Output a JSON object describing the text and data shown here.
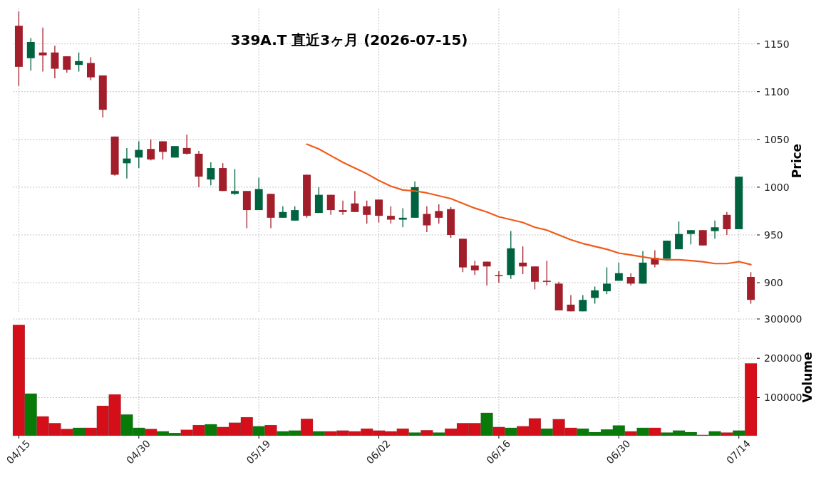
{
  "chart_data": [
    {
      "type": "candlestick",
      "title": "339A.T 直近3ヶ月 (2026-07-15)",
      "ylabel": "Price",
      "categories": [
        null,
        null,
        null,
        null,
        null,
        null,
        null,
        null,
        null,
        null,
        null,
        null,
        null,
        null,
        null,
        null,
        null,
        null,
        null,
        null,
        null,
        null,
        null,
        null,
        null,
        null,
        null,
        null,
        null,
        null,
        null,
        null,
        null,
        null,
        null,
        null,
        null,
        null,
        null,
        null,
        null,
        null,
        null,
        null,
        null,
        null,
        null,
        null,
        null,
        null,
        null,
        null,
        null,
        null,
        null,
        null,
        null,
        null,
        null,
        null,
        null,
        null
      ],
      "ohlc": [
        [
          1169,
          1184,
          1106,
          1126
        ],
        [
          1135,
          1156,
          1122,
          1152
        ],
        [
          1141,
          1167,
          1121,
          1138
        ],
        [
          1141,
          1148,
          1114,
          1124
        ],
        [
          1137,
          1137,
          1120,
          1123
        ],
        [
          1128,
          1141,
          1121,
          1132
        ],
        [
          1130,
          1136,
          1112,
          1115
        ],
        [
          1117,
          1117,
          1073,
          1081
        ],
        [
          1053,
          1053,
          1012,
          1013
        ],
        [
          1025,
          1041,
          1009,
          1030
        ],
        [
          1031,
          1048,
          1020,
          1039
        ],
        [
          1040,
          1050,
          1028,
          1029
        ],
        [
          1048,
          1048,
          1029,
          1037
        ],
        [
          1031,
          1043,
          1031,
          1043
        ],
        [
          1041,
          1055,
          1034,
          1035
        ],
        [
          1035,
          1038,
          1000,
          1011
        ],
        [
          1008,
          1026,
          1002,
          1020
        ],
        [
          1020,
          1025,
          996,
          996
        ],
        [
          993,
          1019,
          992,
          996
        ],
        [
          996,
          996,
          957,
          976
        ],
        [
          976,
          1010,
          976,
          998
        ],
        [
          993,
          993,
          957,
          968
        ],
        [
          968,
          980,
          968,
          974
        ],
        [
          965,
          980,
          965,
          976
        ],
        [
          1013,
          1013,
          968,
          970
        ],
        [
          973,
          1000,
          973,
          992
        ],
        [
          992,
          992,
          971,
          976
        ],
        [
          976,
          986,
          971,
          974
        ],
        [
          983,
          996,
          974,
          974
        ],
        [
          980,
          986,
          962,
          971
        ],
        [
          987,
          987,
          963,
          970
        ],
        [
          970,
          980,
          962,
          966
        ],
        [
          966,
          978,
          958,
          968
        ],
        [
          968,
          1006,
          968,
          1000
        ],
        [
          972,
          980,
          953,
          960
        ],
        [
          975,
          982,
          962,
          968
        ],
        [
          977,
          979,
          947,
          950
        ],
        [
          946,
          946,
          911,
          916
        ],
        [
          918,
          923,
          908,
          913
        ],
        [
          922,
          922,
          897,
          917
        ],
        [
          908,
          912,
          900,
          907
        ],
        [
          908,
          954,
          904,
          936
        ],
        [
          921,
          938,
          909,
          917
        ],
        [
          917,
          917,
          893,
          901
        ],
        [
          902,
          923,
          897,
          901
        ],
        [
          899,
          901,
          871,
          871
        ],
        [
          877,
          887,
          870,
          870
        ],
        [
          870,
          887,
          870,
          882
        ],
        [
          884,
          896,
          878,
          892
        ],
        [
          891,
          916,
          888,
          899
        ],
        [
          902,
          921,
          902,
          910
        ],
        [
          906,
          910,
          897,
          899
        ],
        [
          899,
          933,
          899,
          921
        ],
        [
          926,
          934,
          916,
          919
        ],
        [
          925,
          944,
          925,
          944
        ],
        [
          935,
          964,
          935,
          951
        ],
        [
          951,
          955,
          940,
          955
        ],
        [
          955,
          955,
          939,
          939
        ],
        [
          954,
          965,
          946,
          958
        ],
        [
          971,
          974,
          950,
          956
        ],
        [
          956,
          1011,
          956,
          1011
        ],
        [
          906,
          911,
          878,
          882
        ]
      ],
      "colors": [
        "#a11e2a",
        "#006340",
        "#a11e2a",
        "#a11e2a",
        "#a11e2a",
        "#006340",
        "#a11e2a",
        "#a11e2a",
        "#a11e2a",
        "#006340",
        "#006340",
        "#a11e2a",
        "#a11e2a",
        "#006340",
        "#a11e2a",
        "#a11e2a",
        "#006340",
        "#a11e2a",
        "#006340",
        "#a11e2a",
        "#006340",
        "#a11e2a",
        "#006340",
        "#006340",
        "#a11e2a",
        "#006340",
        "#a11e2a",
        "#a11e2a",
        "#a11e2a",
        "#a11e2a",
        "#a11e2a",
        "#a11e2a",
        "#006340",
        "#006340",
        "#a11e2a",
        "#a11e2a",
        "#a11e2a",
        "#a11e2a",
        "#a11e2a",
        "#a11e2a",
        "#a11e2a",
        "#006340",
        "#a11e2a",
        "#a11e2a",
        "#a11e2a",
        "#a11e2a",
        "#a11e2a",
        "#006340",
        "#006340",
        "#006340",
        "#006340",
        "#a11e2a",
        "#006340",
        "#a11e2a",
        "#006340",
        "#006340",
        "#006340",
        "#a11e2a",
        "#006340",
        "#a11e2a",
        "#006340",
        "#a11e2a"
      ],
      "series": [
        {
          "type": "line",
          "color": "#f05a1a",
          "values": [
            null,
            null,
            null,
            null,
            null,
            null,
            null,
            null,
            null,
            null,
            null,
            null,
            null,
            null,
            null,
            null,
            null,
            null,
            null,
            null,
            null,
            null,
            null,
            null,
            1045,
            1040,
            1033,
            1026,
            1020,
            1014,
            1007,
            1001,
            997,
            996,
            994,
            991,
            988,
            983,
            978,
            974,
            969,
            966,
            963,
            958,
            955,
            950,
            945,
            941,
            938,
            935,
            931,
            929,
            927,
            925,
            924,
            924,
            923,
            922,
            920,
            920,
            922,
            919
          ]
        }
      ],
      "ylim": [
        868,
        1187
      ],
      "yticks": [
        900,
        950,
        1000,
        1050,
        1100,
        1150
      ],
      "grid": true
    },
    {
      "type": "bar",
      "ylabel": "Volume",
      "categories": [
        "04/15",
        null,
        null,
        null,
        null,
        null,
        null,
        null,
        null,
        null,
        "04/30",
        null,
        null,
        null,
        null,
        null,
        null,
        null,
        null,
        null,
        "05/19",
        null,
        null,
        null,
        null,
        null,
        null,
        null,
        null,
        null,
        "06/02",
        null,
        null,
        null,
        null,
        null,
        null,
        null,
        null,
        null,
        "06/16",
        null,
        null,
        null,
        null,
        null,
        null,
        null,
        null,
        null,
        "06/30",
        null,
        null,
        null,
        null,
        null,
        null,
        null,
        null,
        null,
        "07/14",
        null
      ],
      "values": [
        285000,
        110000,
        52000,
        35000,
        20000,
        23000,
        23000,
        79000,
        108000,
        57000,
        23000,
        20000,
        14000,
        10000,
        18000,
        30000,
        32000,
        25000,
        36000,
        50000,
        27000,
        30000,
        14000,
        16000,
        46000,
        14000,
        14000,
        16000,
        14000,
        21000,
        16000,
        14000,
        21000,
        11000,
        17000,
        11000,
        21000,
        35000,
        35000,
        61000,
        25000,
        23000,
        27000,
        47000,
        21000,
        45000,
        23000,
        21000,
        12000,
        19000,
        29000,
        14000,
        23000,
        23000,
        11000,
        16000,
        12000,
        5000,
        14000,
        11000,
        16000,
        187000
      ],
      "colors": [
        "#d40f1a",
        "#087a08",
        "#d40f1a",
        "#d40f1a",
        "#d40f1a",
        "#087a08",
        "#d40f1a",
        "#d40f1a",
        "#d40f1a",
        "#087a08",
        "#087a08",
        "#d40f1a",
        "#087a08",
        "#087a08",
        "#d40f1a",
        "#d40f1a",
        "#087a08",
        "#d40f1a",
        "#d40f1a",
        "#d40f1a",
        "#087a08",
        "#d40f1a",
        "#087a08",
        "#087a08",
        "#d40f1a",
        "#087a08",
        "#d40f1a",
        "#d40f1a",
        "#d40f1a",
        "#d40f1a",
        "#d40f1a",
        "#d40f1a",
        "#d40f1a",
        "#087a08",
        "#d40f1a",
        "#087a08",
        "#d40f1a",
        "#d40f1a",
        "#d40f1a",
        "#087a08",
        "#d40f1a",
        "#087a08",
        "#d40f1a",
        "#d40f1a",
        "#087a08",
        "#d40f1a",
        "#d40f1a",
        "#087a08",
        "#087a08",
        "#087a08",
        "#087a08",
        "#d40f1a",
        "#087a08",
        "#d40f1a",
        "#087a08",
        "#087a08",
        "#087a08",
        "#d40f1a",
        "#087a08",
        "#d40f1a",
        "#087a08",
        "#d40f1a"
      ],
      "ylim": [
        3000,
        300000
      ],
      "yticks": [
        100000,
        200000,
        300000
      ],
      "grid": true
    }
  ]
}
